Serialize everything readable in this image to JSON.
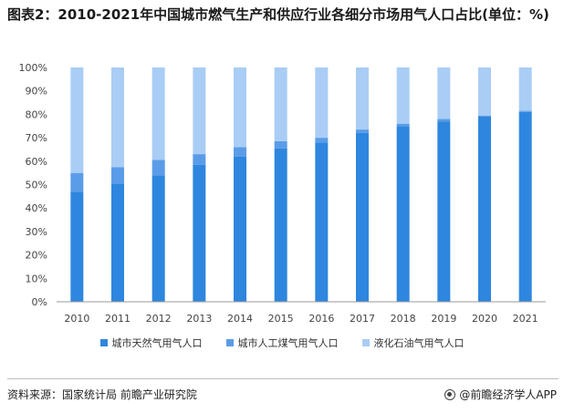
{
  "title": "图表2：2010-2021年中国城市燃气生产和供应行业各细分市场用气人口占比(单位：%)",
  "chart_data": {
    "type": "bar",
    "stacked": true,
    "categories": [
      "2010",
      "2011",
      "2012",
      "2013",
      "2014",
      "2015",
      "2016",
      "2017",
      "2018",
      "2019",
      "2020",
      "2021"
    ],
    "series": [
      {
        "name": "城市天然气用气人口",
        "color": "#2e86de",
        "values": [
          47.0,
          50.5,
          54.0,
          58.5,
          62.0,
          65.5,
          68.0,
          72.0,
          75.0,
          77.0,
          79.0,
          81.0
        ]
      },
      {
        "name": "城市人工煤气用气人口",
        "color": "#5b9ce8",
        "values": [
          8.0,
          7.0,
          6.5,
          4.5,
          4.0,
          3.0,
          2.0,
          1.5,
          1.0,
          1.0,
          0.5,
          0.5
        ]
      },
      {
        "name": "液化石油气用气人口",
        "color": "#a9cdf5",
        "values": [
          45.0,
          42.5,
          39.5,
          37.0,
          34.0,
          31.5,
          30.0,
          26.5,
          24.0,
          22.0,
          20.5,
          18.5
        ]
      }
    ],
    "ylim": [
      0,
      100
    ],
    "yticks": [
      "0%",
      "10%",
      "20%",
      "30%",
      "40%",
      "50%",
      "60%",
      "70%",
      "80%",
      "90%",
      "100%"
    ],
    "xlabel": "",
    "ylabel": "",
    "grid": false
  },
  "source": "资料来源：国家统计局 前瞻产业研究院",
  "brand": "@前瞻经济学人APP"
}
